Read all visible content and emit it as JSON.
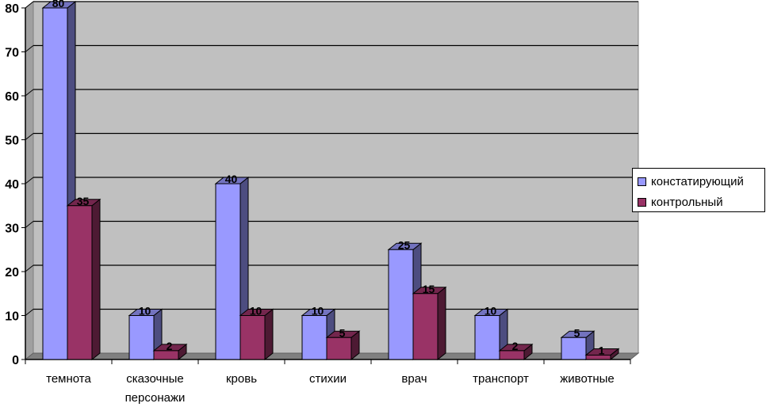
{
  "chart_data": {
    "type": "bar",
    "categories": [
      "темнота",
      "сказочные персонажи",
      "кровь",
      "стихии",
      "врач",
      "транспорт",
      "животные"
    ],
    "series": [
      {
        "name": "констатирующий",
        "values": [
          80,
          10,
          40,
          10,
          25,
          10,
          5
        ],
        "color": "#9999FF",
        "side_color": "#4D4D80",
        "top_color": "#7373BF"
      },
      {
        "name": "контрольный",
        "values": [
          35,
          2,
          10,
          5,
          15,
          2,
          1
        ],
        "color": "#993366",
        "side_color": "#4D1A33",
        "top_color": "#73264D"
      }
    ],
    "data_labels": true,
    "yticks": [
      0,
      10,
      20,
      30,
      40,
      50,
      60,
      70,
      80
    ],
    "ylim": [
      0,
      80
    ],
    "grid": true,
    "legend_position": "right",
    "title": "",
    "xlabel": "",
    "ylabel": "",
    "plot_background": "#C0C0C0"
  }
}
